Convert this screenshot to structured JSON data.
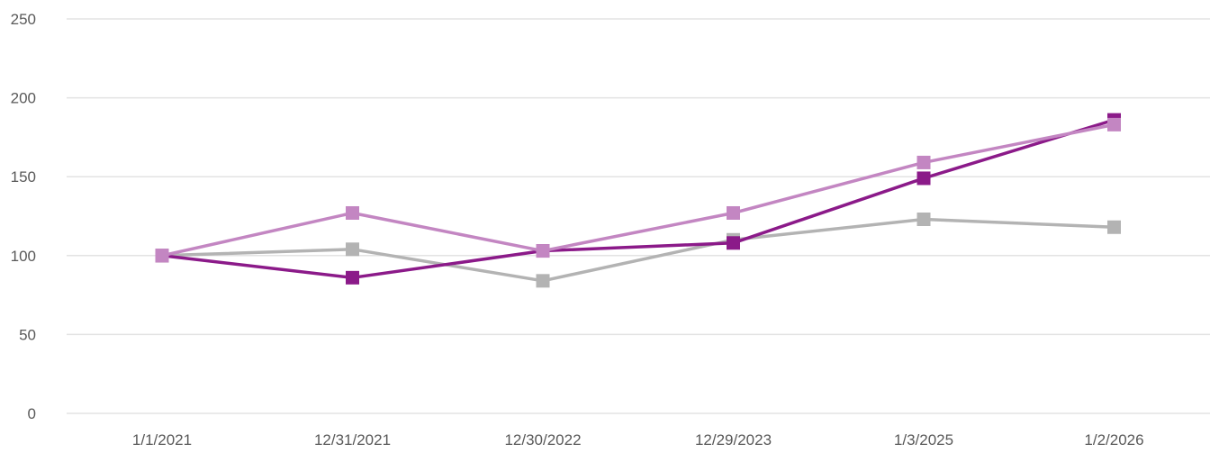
{
  "chart_data": {
    "type": "line",
    "title": "",
    "xlabel": "",
    "ylabel": "",
    "categories": [
      "1/1/2021",
      "12/31/2021",
      "12/30/2022",
      "12/29/2023",
      "1/3/2025",
      "1/2/2026"
    ],
    "ylim": [
      0,
      250
    ],
    "yticks": [
      "0",
      "50",
      "100",
      "150",
      "200",
      "250"
    ],
    "grid": true,
    "legend": "none",
    "marker": "square",
    "series": [
      {
        "color": "#8B1A89",
        "values": [
          100,
          86,
          103,
          108,
          149,
          186
        ]
      },
      {
        "color": "#C386C2",
        "values": [
          100,
          127,
          103,
          127,
          159,
          183
        ]
      },
      {
        "color": "#B3B3B3",
        "values": [
          100,
          104,
          84,
          110,
          123,
          118
        ]
      }
    ]
  }
}
